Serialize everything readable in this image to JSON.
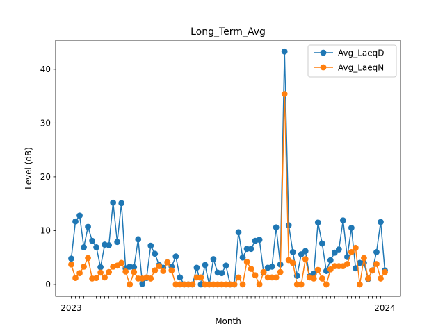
{
  "chart_data": {
    "type": "line",
    "title": "Long_Term_Avg",
    "xlabel": "Month",
    "ylabel": "Level (dB)",
    "ylim": [
      -2.2,
      45.4
    ],
    "yticks": [
      0,
      10,
      20,
      30,
      40
    ],
    "grid": false,
    "legend_position": "top-right",
    "x_tick_label_first": "2023",
    "x_tick_label_last": "2024",
    "series": [
      {
        "name": "Avg_LaeqD",
        "color": "#1f77b4",
        "values": [
          4.8,
          11.7,
          12.8,
          6.9,
          10.7,
          8.1,
          6.9,
          3.2,
          7.4,
          7.3,
          15.2,
          7.9,
          15.1,
          3.0,
          3.3,
          3.2,
          8.4,
          0.1,
          1.2,
          7.2,
          5.7,
          3.6,
          3.1,
          4.1,
          3.3,
          5.2,
          1.3,
          0.0,
          0.0,
          0.0,
          3.1,
          0.0,
          3.6,
          0.0,
          4.7,
          2.2,
          2.1,
          3.5,
          0.0,
          0.0,
          9.7,
          5.0,
          6.6,
          6.6,
          8.1,
          8.3,
          2.2,
          3.1,
          3.3,
          10.6,
          3.7,
          43.3,
          11.0,
          6.0,
          1.6,
          5.6,
          6.2,
          1.5,
          2.0,
          11.5,
          7.6,
          2.5,
          4.5,
          5.9,
          6.5,
          11.9,
          5.1,
          10.5,
          3.0,
          4.0,
          4.0,
          1.0,
          2.6,
          6.0,
          11.6,
          2.6
        ]
      },
      {
        "name": "Avg_LaeqN",
        "color": "#ff7f0e",
        "values": [
          3.7,
          1.2,
          2.1,
          3.3,
          4.9,
          1.1,
          1.2,
          2.2,
          1.3,
          2.3,
          3.3,
          3.5,
          4.0,
          2.4,
          0.0,
          2.3,
          1.1,
          1.1,
          1.3,
          1.1,
          2.6,
          3.4,
          2.5,
          4.1,
          2.6,
          0.0,
          0.0,
          0.0,
          0.0,
          0.0,
          1.3,
          1.3,
          0.0,
          0.0,
          0.0,
          0.0,
          0.0,
          0.0,
          0.0,
          0.0,
          1.3,
          0.0,
          4.2,
          2.9,
          1.7,
          0.0,
          2.3,
          1.3,
          1.3,
          1.3,
          2.3,
          35.4,
          4.5,
          4.0,
          0.0,
          0.0,
          4.7,
          1.3,
          1.1,
          2.7,
          1.1,
          0.0,
          2.8,
          3.4,
          3.4,
          3.4,
          3.8,
          6.0,
          6.8,
          0.0,
          4.9,
          1.1,
          2.6,
          3.8,
          1.1,
          2.3
        ]
      }
    ]
  }
}
